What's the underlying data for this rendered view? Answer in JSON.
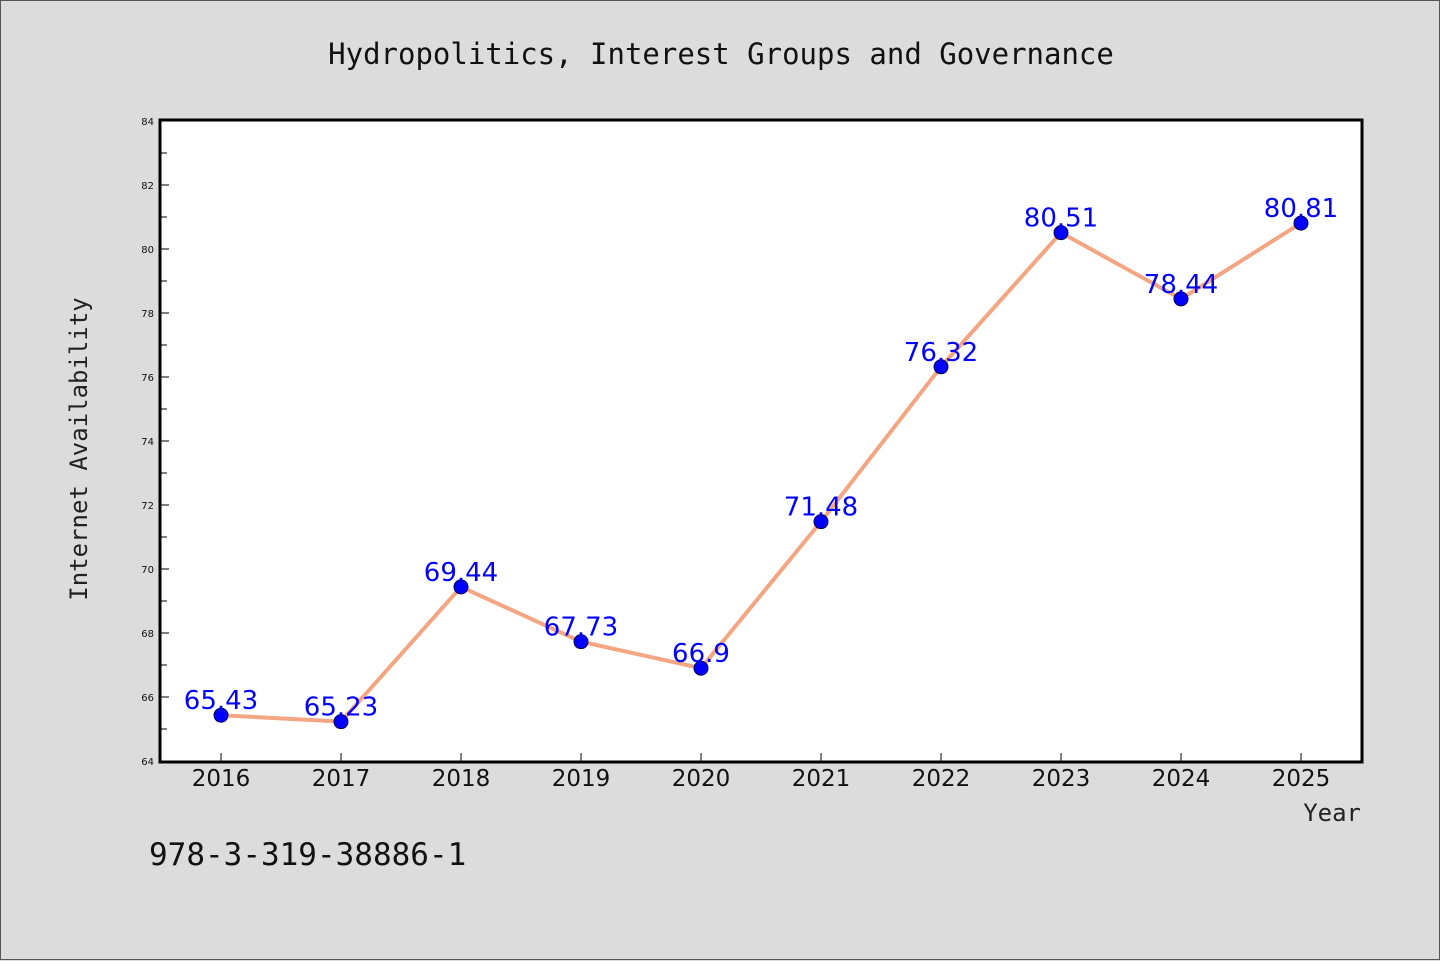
{
  "chart_data": {
    "type": "line",
    "title": "Hydropolitics, Interest Groups and Governance",
    "xlabel": "Year",
    "ylabel": "Internet Availability",
    "x": [
      "2016",
      "2017",
      "2018",
      "2019",
      "2020",
      "2021",
      "2022",
      "2023",
      "2024",
      "2025"
    ],
    "values": [
      65.43,
      65.23,
      69.44,
      67.73,
      66.9,
      71.48,
      76.32,
      80.51,
      78.44,
      80.81
    ],
    "data_labels": [
      "65.43",
      "65.23",
      "69.44",
      "67.73",
      "66.9",
      "71.48",
      "76.32",
      "80.51",
      "78.44",
      "80.81"
    ],
    "ylim": [
      64,
      84
    ],
    "yticks": [
      "64",
      "66",
      "68",
      "70",
      "72",
      "74",
      "76",
      "78",
      "80",
      "82",
      "84"
    ],
    "grid": false,
    "line_color": "#f4a582",
    "marker_color": "#0000ff",
    "label_color": "#0000ff"
  },
  "footnote": "978-3-319-38886-1"
}
